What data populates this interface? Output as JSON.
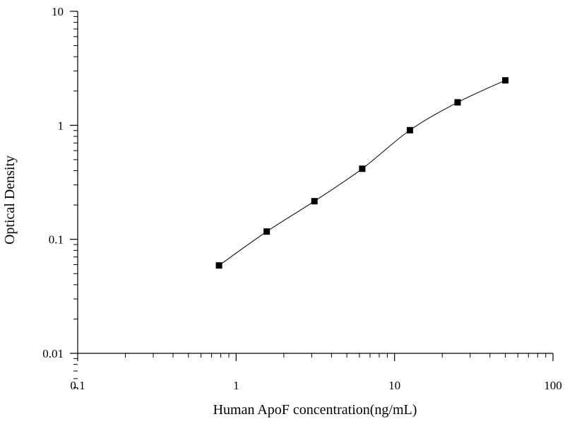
{
  "chart_data": {
    "type": "scatter",
    "xlabel": "Human ApoF concentration(ng/mL)",
    "ylabel": "Optical Density",
    "x_scale": "log",
    "y_scale": "log",
    "xlim": [
      0.1,
      100
    ],
    "ylim": [
      0.005,
      10
    ],
    "x_ticks": [
      "0.1",
      "1",
      "10",
      "100"
    ],
    "y_ticks": [
      "0.01",
      "0.1",
      "1",
      "10"
    ],
    "grid": false,
    "series": [
      {
        "x": [
          0.78,
          1.56,
          3.12,
          6.25,
          12.5,
          25,
          50
        ],
        "y": [
          0.059,
          0.117,
          0.216,
          0.416,
          0.906,
          1.59,
          2.48
        ],
        "marker": "square",
        "fit": "smooth-curve"
      }
    ],
    "colors": {
      "marker": "#000000",
      "line": "#000000"
    }
  }
}
